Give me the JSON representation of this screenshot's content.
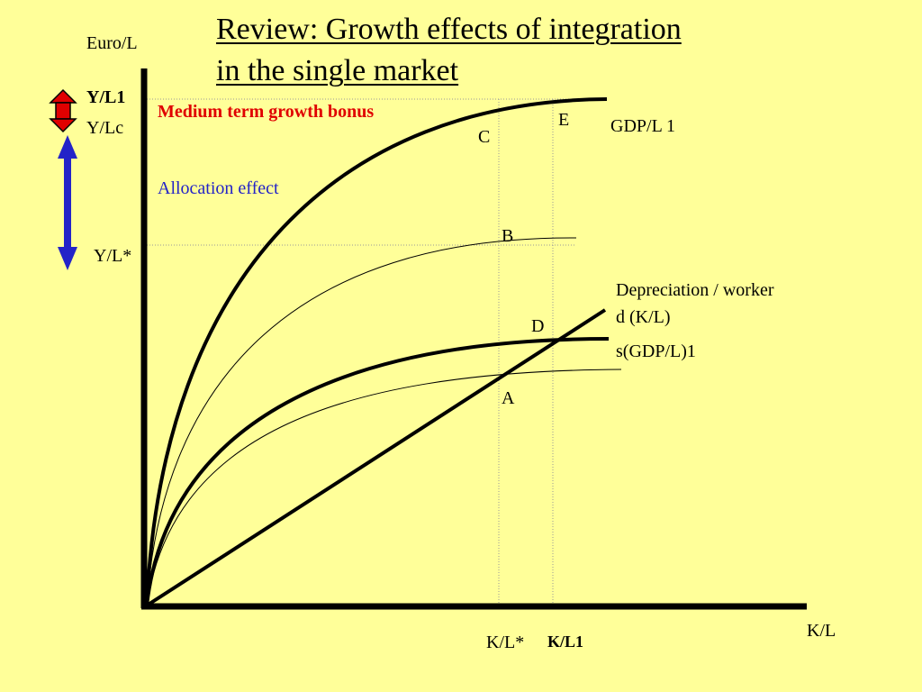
{
  "title": {
    "line1": "Review: Growth effects of integration",
    "line2": "in the single market"
  },
  "axes": {
    "y_label": "Euro/L",
    "x_label": "K/L"
  },
  "y_ticks": {
    "yl1": "Y/L1",
    "ylc": "Y/Lc",
    "yl_star": "Y/L*"
  },
  "x_ticks": {
    "kl_star": "K/L*",
    "kl1": "K/L1"
  },
  "annotations": {
    "medium_term": "Medium term growth bonus",
    "allocation": "Allocation effect"
  },
  "points": {
    "a": "A",
    "b": "B",
    "c": "C",
    "d": "D",
    "e": "E"
  },
  "curves": {
    "gdp_l1": "GDP/L 1",
    "depreciation_line1": "Depreciation / worker",
    "depreciation_line2": "d (K/L)",
    "s_gdp_l1": "s(GDP/L)1"
  },
  "colors": {
    "background": "#FFFF99",
    "medium_term_arrow": "#E00000",
    "allocation_arrow": "#2323C8"
  }
}
